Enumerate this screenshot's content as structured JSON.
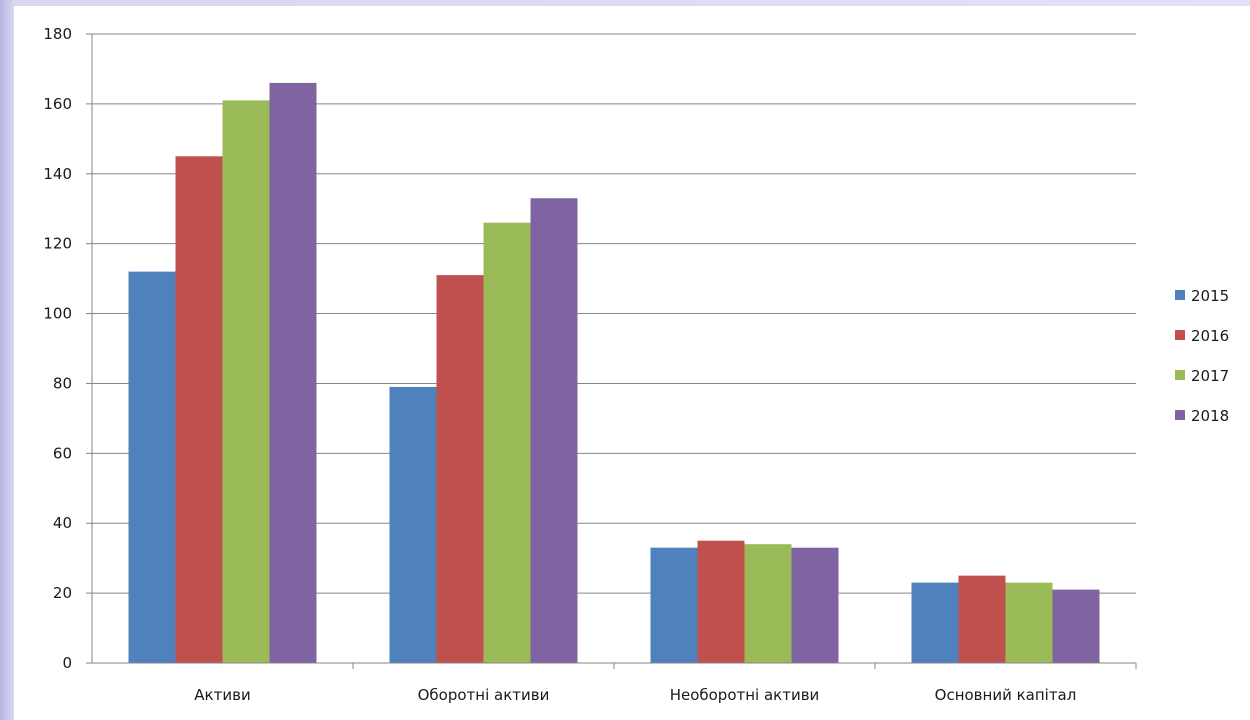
{
  "chart_data": {
    "type": "bar",
    "title": "",
    "xlabel": "",
    "ylabel": "",
    "categories": [
      "Активи",
      "Оборотні активи",
      "Необоротні активи",
      "Основний капітал"
    ],
    "series": [
      {
        "name": "2015",
        "color": "#4f81bd",
        "values": [
          112,
          79,
          33,
          23
        ]
      },
      {
        "name": "2016",
        "color": "#c0504d",
        "values": [
          145,
          111,
          35,
          25
        ]
      },
      {
        "name": "2017",
        "color": "#9bbb59",
        "values": [
          161,
          126,
          34,
          23
        ]
      },
      {
        "name": "2018",
        "color": "#8064a2",
        "values": [
          166,
          133,
          33,
          21
        ]
      }
    ],
    "ylim": [
      0,
      180
    ],
    "yticks": [
      0,
      20,
      40,
      60,
      80,
      100,
      120,
      140,
      160,
      180
    ],
    "grid": true,
    "legend_position": "right"
  }
}
